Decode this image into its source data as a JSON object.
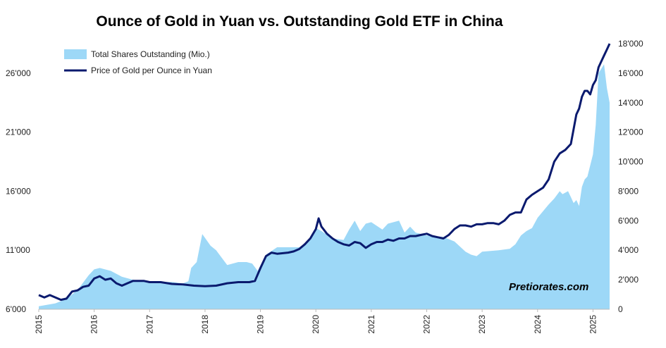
{
  "chart_data": {
    "type": "line",
    "title": "Ounce of Gold in Yuan vs. Outstanding Gold ETF in China",
    "watermark": "Pretiorates.com",
    "x_ticks": [
      "2015",
      "2016",
      "2017",
      "2018",
      "2019",
      "2020",
      "2021",
      "2022",
      "2023",
      "2024",
      "2025"
    ],
    "xlim": [
      2015.0,
      2025.3
    ],
    "left_axis": {
      "ticks": [
        "6'000",
        "11'000",
        "16'000",
        "21'000",
        "26'000"
      ],
      "ylim": [
        6000,
        28500
      ]
    },
    "right_axis": {
      "ticks": [
        "0",
        "2'000",
        "4'000",
        "6'000",
        "8'000",
        "10'000",
        "12'000",
        "14'000",
        "16'000",
        "18'000"
      ],
      "ylim": [
        0,
        18000
      ]
    },
    "legend": {
      "position": "top-left"
    },
    "series": [
      {
        "name": "Total Shares Outstanding (Mio.)",
        "kind": "area",
        "axis": "right",
        "color": "#9dd8f7",
        "x": [
          2015.0,
          2015.3,
          2015.5,
          2015.7,
          2015.9,
          2016.0,
          2016.1,
          2016.3,
          2016.5,
          2016.7,
          2016.9,
          2017.0,
          2017.2,
          2017.4,
          2017.5,
          2017.6,
          2017.7,
          2017.75,
          2017.85,
          2017.95,
          2018.1,
          2018.2,
          2018.3,
          2018.4,
          2018.6,
          2018.75,
          2018.85,
          2018.95,
          2019.1,
          2019.3,
          2019.5,
          2019.7,
          2019.9,
          2020.0,
          2020.1,
          2020.3,
          2020.5,
          2020.6,
          2020.7,
          2020.8,
          2020.9,
          2021.0,
          2021.2,
          2021.3,
          2021.5,
          2021.6,
          2021.7,
          2021.8,
          2022.0,
          2022.3,
          2022.5,
          2022.7,
          2022.8,
          2022.9,
          2023.0,
          2023.3,
          2023.5,
          2023.6,
          2023.7,
          2023.8,
          2023.9,
          2024.0,
          2024.2,
          2024.3,
          2024.4,
          2024.45,
          2024.55,
          2024.6,
          2024.65,
          2024.7,
          2024.75,
          2024.8,
          2024.85,
          2024.9,
          2025.0,
          2025.05,
          2025.1,
          2025.2,
          2025.25,
          2025.3
        ],
        "y": [
          200,
          400,
          700,
          1300,
          2300,
          2700,
          2800,
          2600,
          2200,
          2000,
          1900,
          1900,
          1850,
          1850,
          1800,
          1750,
          1900,
          2800,
          3200,
          5100,
          4300,
          4000,
          3500,
          3000,
          3200,
          3200,
          3100,
          2600,
          3700,
          4200,
          4200,
          4200,
          4700,
          5500,
          5300,
          4800,
          4700,
          5400,
          6000,
          5300,
          5800,
          5900,
          5400,
          5800,
          6000,
          5200,
          5600,
          5200,
          5000,
          4900,
          4600,
          3900,
          3700,
          3600,
          3900,
          4000,
          4100,
          4400,
          5000,
          5300,
          5500,
          6200,
          7100,
          7500,
          8000,
          7800,
          8000,
          7600,
          7200,
          7400,
          7000,
          8300,
          8800,
          9000,
          10500,
          12500,
          16000,
          16600,
          15000,
          14000
        ]
      },
      {
        "name": "Price of Gold per Ounce in Yuan",
        "kind": "line",
        "axis": "left",
        "color": "#0a1a6e",
        "x": [
          2015.0,
          2015.1,
          2015.2,
          2015.3,
          2015.4,
          2015.5,
          2015.6,
          2015.7,
          2015.8,
          2015.9,
          2016.0,
          2016.1,
          2016.2,
          2016.3,
          2016.4,
          2016.5,
          2016.6,
          2016.7,
          2016.8,
          2016.9,
          2017.0,
          2017.2,
          2017.4,
          2017.6,
          2017.8,
          2018.0,
          2018.2,
          2018.4,
          2018.6,
          2018.8,
          2018.9,
          2019.0,
          2019.1,
          2019.2,
          2019.3,
          2019.5,
          2019.6,
          2019.7,
          2019.8,
          2019.9,
          2020.0,
          2020.05,
          2020.1,
          2020.15,
          2020.2,
          2020.3,
          2020.4,
          2020.5,
          2020.6,
          2020.7,
          2020.8,
          2020.9,
          2021.0,
          2021.1,
          2021.2,
          2021.3,
          2021.4,
          2021.5,
          2021.6,
          2021.7,
          2021.8,
          2021.9,
          2022.0,
          2022.1,
          2022.2,
          2022.3,
          2022.4,
          2022.5,
          2022.6,
          2022.7,
          2022.8,
          2022.9,
          2023.0,
          2023.1,
          2023.2,
          2023.3,
          2023.4,
          2023.5,
          2023.6,
          2023.7,
          2023.8,
          2023.9,
          2024.0,
          2024.1,
          2024.2,
          2024.3,
          2024.4,
          2024.5,
          2024.6,
          2024.7,
          2024.75,
          2024.8,
          2024.85,
          2024.9,
          2024.95,
          2025.0,
          2025.05,
          2025.1,
          2025.15,
          2025.2,
          2025.25,
          2025.3
        ],
        "y": [
          7200,
          7000,
          7200,
          7000,
          6800,
          6900,
          7500,
          7600,
          7900,
          8000,
          8600,
          8800,
          8500,
          8600,
          8200,
          8000,
          8200,
          8400,
          8400,
          8400,
          8300,
          8300,
          8150,
          8100,
          8000,
          7950,
          8000,
          8200,
          8300,
          8300,
          8400,
          9500,
          10500,
          10800,
          10700,
          10800,
          10900,
          11100,
          11500,
          12000,
          12800,
          13700,
          13000,
          12700,
          12400,
          12000,
          11700,
          11500,
          11400,
          11700,
          11600,
          11200,
          11500,
          11700,
          11700,
          11900,
          11800,
          12000,
          12000,
          12200,
          12200,
          12300,
          12400,
          12200,
          12100,
          12000,
          12300,
          12800,
          13100,
          13100,
          13000,
          13200,
          13200,
          13300,
          13300,
          13200,
          13500,
          14000,
          14200,
          14200,
          15300,
          15700,
          16000,
          16300,
          17000,
          18500,
          19200,
          19500,
          20000,
          22500,
          23000,
          24000,
          24500,
          24500,
          24200,
          25000,
          25400,
          26500,
          27000,
          27500,
          28000,
          28500
        ]
      }
    ]
  }
}
